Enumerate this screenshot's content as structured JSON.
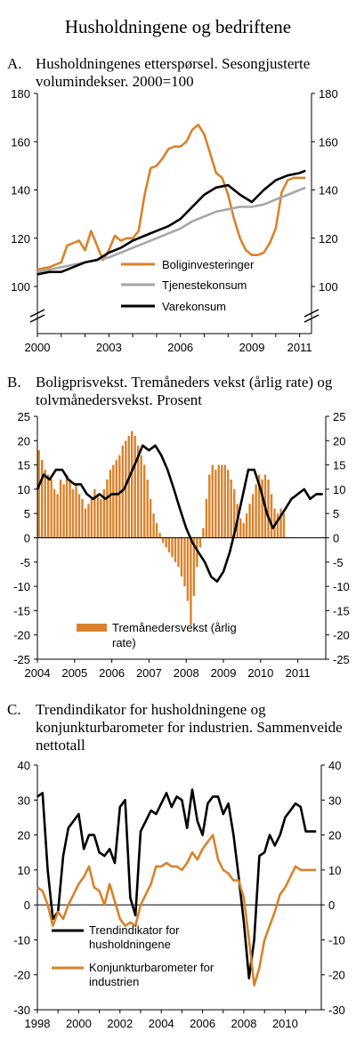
{
  "page_title": "Husholdningene og bedriftene",
  "colors": {
    "orange": "#D9822B",
    "gray": "#A6A6A6",
    "black": "#000000"
  },
  "chart_data": [
    {
      "label": "A.",
      "title": "Husholdningenes etterspørsel. Sesongjusterte volumindekser. 2000=100",
      "type": "line",
      "ylim": [
        100,
        180
      ],
      "y_ticks": [
        "100",
        "120",
        "140",
        "160",
        "180"
      ],
      "x_ticks": [
        "2000",
        "2003",
        "2006",
        "2009",
        "2011"
      ],
      "x_range": [
        2000,
        2011.5
      ],
      "axis_break": true,
      "legend_position": "bottom-right",
      "series": [
        {
          "name": "Boliginvesteringer",
          "color": "#D9822B",
          "x": [
            2000,
            2000.5,
            2001,
            2001.25,
            2001.5,
            2001.75,
            2002,
            2002.25,
            2002.5,
            2002.75,
            2003,
            2003.25,
            2003.5,
            2003.75,
            2004,
            2004.25,
            2004.5,
            2004.75,
            2005,
            2005.25,
            2005.5,
            2005.75,
            2006,
            2006.25,
            2006.5,
            2006.75,
            2007,
            2007.25,
            2007.5,
            2007.75,
            2008,
            2008.25,
            2008.5,
            2008.75,
            2009,
            2009.25,
            2009.5,
            2009.75,
            2010,
            2010.25,
            2010.5,
            2010.75,
            2011,
            2011.25
          ],
          "y": [
            107,
            108,
            110,
            117,
            118,
            119,
            115,
            123,
            117,
            111,
            115,
            121,
            119,
            120,
            120,
            123,
            138,
            149,
            150,
            153,
            157,
            158,
            158,
            160,
            165,
            167,
            163,
            155,
            147,
            145,
            138,
            128,
            120,
            115,
            113,
            113,
            114,
            118,
            124,
            139,
            144,
            145,
            145,
            145
          ]
        },
        {
          "name": "Tjenestekonsum",
          "color": "#A6A6A6",
          "x": [
            2000,
            2000.5,
            2001,
            2001.5,
            2002,
            2002.5,
            2003,
            2003.5,
            2004,
            2004.5,
            2005,
            2005.5,
            2006,
            2006.5,
            2007,
            2007.5,
            2008,
            2008.5,
            2009,
            2009.5,
            2010,
            2010.5,
            2011,
            2011.25
          ],
          "y": [
            106,
            107,
            108,
            109,
            110,
            111,
            112,
            114,
            116,
            118,
            120,
            122,
            124,
            127,
            129,
            131,
            132,
            133,
            133,
            134,
            136,
            138,
            140,
            141
          ]
        },
        {
          "name": "Varekonsum",
          "color": "#000000",
          "x": [
            2000,
            2000.5,
            2001,
            2001.5,
            2002,
            2002.5,
            2003,
            2003.5,
            2004,
            2004.5,
            2005,
            2005.5,
            2006,
            2006.5,
            2007,
            2007.5,
            2008,
            2008.5,
            2009,
            2009.5,
            2010,
            2010.5,
            2011,
            2011.25
          ],
          "y": [
            105,
            106,
            106,
            108,
            110,
            111,
            114,
            116,
            119,
            121,
            123,
            125,
            128,
            133,
            138,
            141,
            142,
            138,
            135,
            140,
            144,
            146,
            147,
            148
          ]
        }
      ]
    },
    {
      "label": "B.",
      "title": "Boligprisvekst. Tremåneders vekst (årlig rate) og tolvmånedersvekst. Prosent",
      "type": "bar",
      "ylim": [
        -25,
        25
      ],
      "y_ticks": [
        "-25",
        "-20",
        "-15",
        "-10",
        "-5",
        "0",
        "5",
        "10",
        "15",
        "20",
        "25"
      ],
      "x_ticks": [
        "2004",
        "2005",
        "2006",
        "2007",
        "2008",
        "2009",
        "2010",
        "2011"
      ],
      "x_range": [
        2004,
        2011.75
      ],
      "legend_position": "bottom-left",
      "series": [
        {
          "name": "Tremånedersvekst (årlig rate)",
          "color": "#D9822B",
          "monthly_start": 2004,
          "values": [
            18,
            16,
            14,
            13,
            12,
            10,
            9,
            12,
            11,
            13,
            12,
            10,
            11,
            9,
            8,
            6,
            7,
            8,
            10,
            9,
            8,
            10,
            12,
            14,
            15,
            16,
            17,
            19,
            20,
            21,
            22,
            21,
            19,
            17,
            15,
            12,
            8,
            5,
            3,
            1,
            -1,
            -2,
            -3,
            -4,
            -5,
            -6,
            -8,
            -10,
            -13,
            -18,
            -12,
            -6,
            -2,
            2,
            8,
            13,
            15,
            14,
            15,
            15,
            15,
            14,
            12,
            10,
            7,
            4,
            3,
            5,
            7,
            9,
            11,
            13,
            12,
            13,
            12,
            9,
            6,
            5,
            6,
            5
          ]
        },
        {
          "name": "Tolvmånedersvekst",
          "color": "#000000",
          "x": [
            2004,
            2004.17,
            2004.33,
            2004.5,
            2004.67,
            2004.83,
            2005,
            2005.17,
            2005.33,
            2005.5,
            2005.67,
            2005.83,
            2006,
            2006.17,
            2006.33,
            2006.5,
            2006.67,
            2006.83,
            2007,
            2007.17,
            2007.33,
            2007.5,
            2007.67,
            2007.83,
            2008,
            2008.17,
            2008.33,
            2008.5,
            2008.67,
            2008.83,
            2009,
            2009.17,
            2009.33,
            2009.5,
            2009.67,
            2009.83,
            2010,
            2010.17,
            2010.33,
            2010.5,
            2010.67,
            2010.83,
            2011,
            2011.17,
            2011.33,
            2011.5,
            2011.67
          ],
          "y": [
            10,
            13,
            12,
            14,
            14,
            12,
            11,
            11,
            9,
            8,
            9,
            8,
            9,
            9,
            10,
            13,
            16,
            19,
            18,
            19,
            17,
            14,
            10,
            6,
            2,
            -1,
            -3,
            -5,
            -8,
            -9,
            -7,
            -3,
            2,
            8,
            14,
            14,
            10,
            5,
            2,
            4,
            6,
            8,
            9,
            10,
            8,
            9,
            9
          ]
        }
      ]
    },
    {
      "label": "C.",
      "title": "Trendindikator for husholdningene og konjunkturbarometer for industrien. Sammenveide nettotall",
      "type": "line",
      "ylim": [
        -30,
        40
      ],
      "y_ticks": [
        "-30",
        "-20",
        "-10",
        "0",
        "10",
        "20",
        "30",
        "40"
      ],
      "x_ticks": [
        "1998",
        "2000",
        "2002",
        "2004",
        "2006",
        "2008",
        "2010"
      ],
      "x_range": [
        1998,
        2011.75
      ],
      "legend_position": "bottom-right",
      "series": [
        {
          "name": "Trendindikator for husholdningene",
          "color": "#000000",
          "x": [
            1998,
            1998.25,
            1998.5,
            1998.75,
            1999,
            1999.25,
            1999.5,
            1999.75,
            2000,
            2000.25,
            2000.5,
            2000.75,
            2001,
            2001.25,
            2001.5,
            2001.75,
            2002,
            2002.25,
            2002.5,
            2002.75,
            2003,
            2003.25,
            2003.5,
            2003.75,
            2004,
            2004.25,
            2004.5,
            2004.75,
            2005,
            2005.25,
            2005.5,
            2005.75,
            2006,
            2006.25,
            2006.5,
            2006.75,
            2007,
            2007.25,
            2007.5,
            2007.75,
            2008,
            2008.25,
            2008.5,
            2008.75,
            2009,
            2009.25,
            2009.5,
            2009.75,
            2010,
            2010.25,
            2010.5,
            2010.75,
            2011,
            2011.25,
            2011.5
          ],
          "y": [
            31,
            32,
            10,
            -4,
            -2,
            14,
            22,
            24,
            26,
            16,
            20,
            20,
            15,
            14,
            16,
            12,
            28,
            30,
            2,
            -3,
            21,
            24,
            27,
            26,
            29,
            32,
            28,
            31,
            30,
            22,
            33,
            24,
            20,
            29,
            31,
            31,
            26,
            29,
            20,
            8,
            -5,
            -21,
            -10,
            14,
            15,
            20,
            17,
            20,
            25,
            27,
            29,
            28,
            21,
            21,
            21
          ]
        },
        {
          "name": "Konjunkturbarometer for industrien",
          "color": "#D9822B",
          "x": [
            1998,
            1998.25,
            1998.5,
            1998.75,
            1999,
            1999.25,
            1999.5,
            1999.75,
            2000,
            2000.25,
            2000.5,
            2000.75,
            2001,
            2001.25,
            2001.5,
            2001.75,
            2002,
            2002.25,
            2002.5,
            2002.75,
            2003,
            2003.25,
            2003.5,
            2003.75,
            2004,
            2004.25,
            2004.5,
            2004.75,
            2005,
            2005.25,
            2005.5,
            2005.75,
            2006,
            2006.25,
            2006.5,
            2006.75,
            2007,
            2007.25,
            2007.5,
            2007.75,
            2008,
            2008.25,
            2008.5,
            2008.75,
            2009,
            2009.25,
            2009.5,
            2009.75,
            2010,
            2010.25,
            2010.5,
            2010.75,
            2011,
            2011.25,
            2011.5
          ],
          "y": [
            5,
            4,
            0,
            -6,
            -2,
            -4,
            0,
            3,
            6,
            8,
            11,
            5,
            4,
            0,
            6,
            1,
            -4,
            -6,
            -5,
            -6,
            0,
            3,
            6,
            11,
            11,
            12,
            11,
            11,
            10,
            12,
            15,
            13,
            16,
            18,
            20,
            13,
            10,
            9,
            7,
            7,
            2,
            -10,
            -23,
            -18,
            -10,
            -6,
            -2,
            3,
            5,
            8,
            11,
            10,
            10,
            10,
            10
          ]
        }
      ]
    }
  ]
}
